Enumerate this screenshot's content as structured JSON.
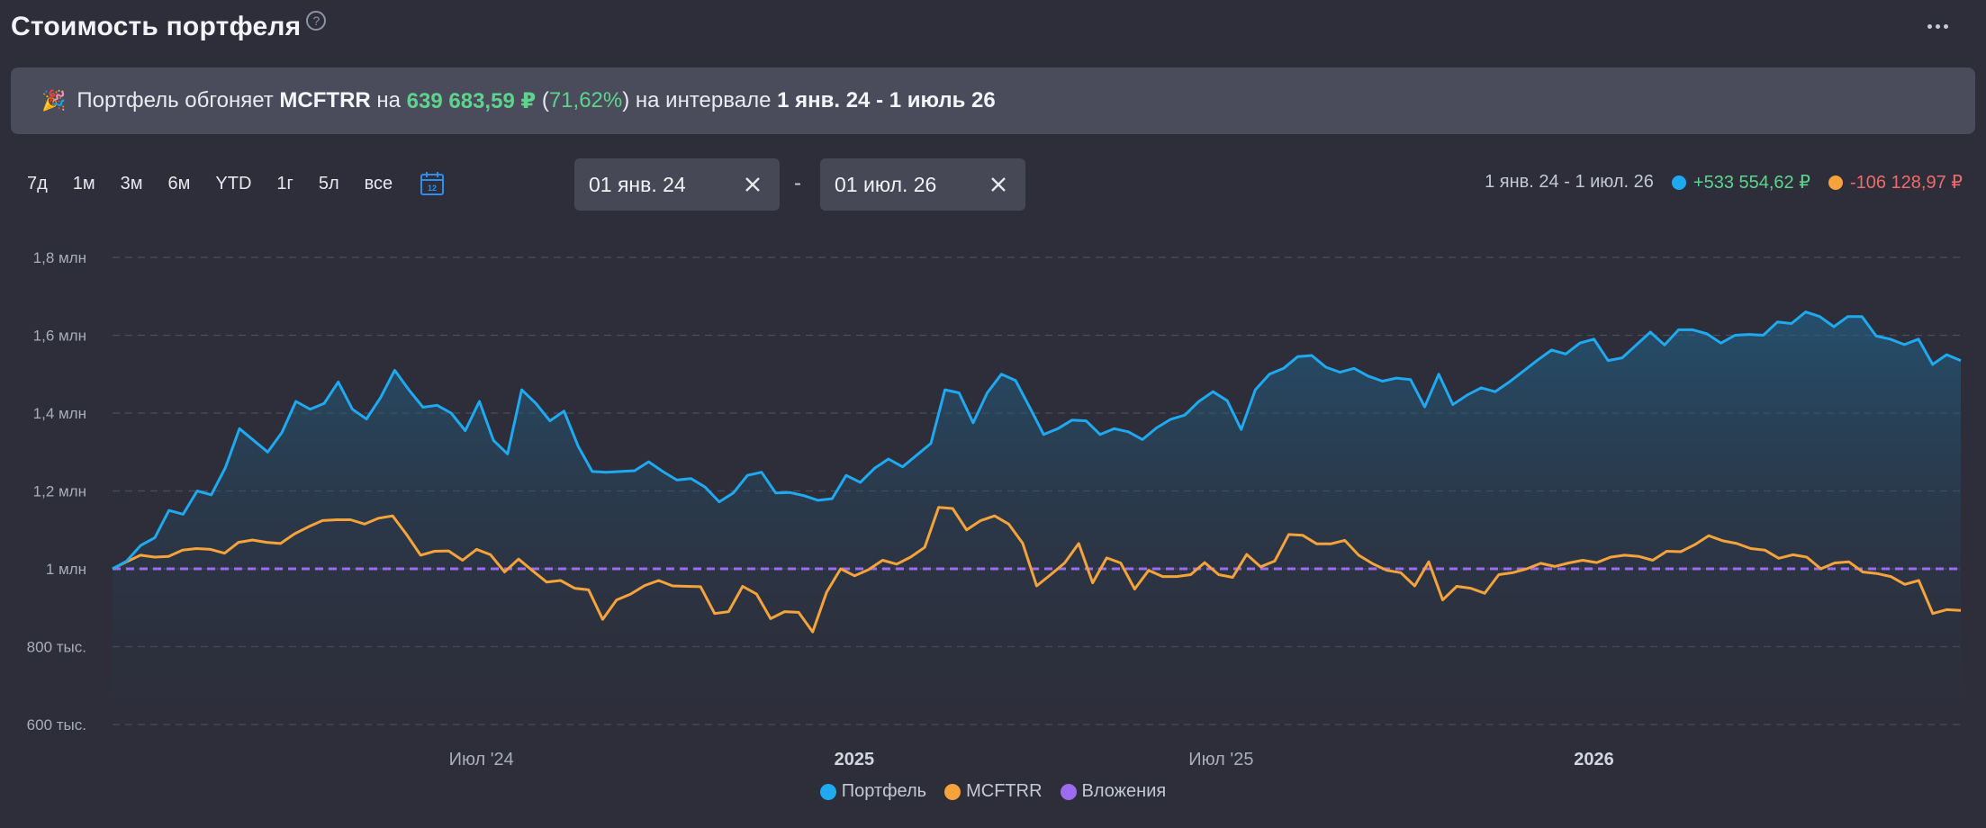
{
  "header": {
    "title": "Стоимость портфеля",
    "help": "?"
  },
  "banner": {
    "icon": "party-popper-icon",
    "text1": "Портфель обгоняет ",
    "benchmark": "MCFTRR",
    "text2": " на ",
    "amount": "639 683,59 ₽",
    "text3": " (",
    "percent": "71,62%",
    "text4": ") на интервале ",
    "interval": "1 янв. 24 - 1 июль 26"
  },
  "ranges": [
    "7д",
    "1м",
    "3м",
    "6м",
    "YTD",
    "1г",
    "5л",
    "все"
  ],
  "date_from": "01 янв. 24",
  "date_to": "01 июл. 26",
  "date_sep": "-",
  "summary": {
    "interval": "1 янв. 24 - 1 июл. 26",
    "portfolio_change": "+533 554,62 ₽",
    "benchmark_change": "-106 128,97 ₽"
  },
  "colors": {
    "portfolio": "#1ea9f0",
    "benchmark": "#f5a33a",
    "investments": "#9b6cf0",
    "positive": "#5fd38d",
    "negative": "#ef6b6b"
  },
  "chart_data": {
    "type": "line",
    "ylim": [
      600000,
      1800000
    ],
    "yticks": [
      {
        "v": 1800000,
        "label": "1,8 млн"
      },
      {
        "v": 1600000,
        "label": "1,6 млн"
      },
      {
        "v": 1400000,
        "label": "1,4 млн"
      },
      {
        "v": 1200000,
        "label": "1,2 млн"
      },
      {
        "v": 1000000,
        "label": "1 млн"
      },
      {
        "v": 800000,
        "label": "800 тыс."
      },
      {
        "v": 600000,
        "label": "600 тыс."
      }
    ],
    "xrange": [
      "2024-01-01",
      "2026-07-01"
    ],
    "xticks": [
      {
        "date": "2024-07-01",
        "label": "Июл '24",
        "bold": false
      },
      {
        "date": "2025-01-01",
        "label": "2025",
        "bold": true
      },
      {
        "date": "2025-07-01",
        "label": "Июл '25",
        "bold": false
      },
      {
        "date": "2026-01-01",
        "label": "2026",
        "bold": true
      }
    ],
    "series": [
      {
        "name": "Портфель",
        "key": "portfolio",
        "values": [
          1000000,
          1020000,
          1060000,
          1080000,
          1150000,
          1140000,
          1200000,
          1190000,
          1260000,
          1360000,
          1330000,
          1300000,
          1350000,
          1430000,
          1410000,
          1425000,
          1480000,
          1410000,
          1385000,
          1440000,
          1510000,
          1460000,
          1415000,
          1420000,
          1400000,
          1355000,
          1430000,
          1330000,
          1295000,
          1460000,
          1425000,
          1380000,
          1405000,
          1315000,
          1250000,
          1248000,
          1250000,
          1252000,
          1275000,
          1250000,
          1228000,
          1232000,
          1210000,
          1172000,
          1195000,
          1240000,
          1248000,
          1195000,
          1196000,
          1188000,
          1176000,
          1180000,
          1240000,
          1222000,
          1258000,
          1282000,
          1262000,
          1292000,
          1322000,
          1460000,
          1452000,
          1375000,
          1452000,
          1500000,
          1484000,
          1415000,
          1345000,
          1360000,
          1382000,
          1380000,
          1345000,
          1360000,
          1352000,
          1332000,
          1362000,
          1384000,
          1395000,
          1430000,
          1455000,
          1432000,
          1358000,
          1460000,
          1500000,
          1515000,
          1545000,
          1548000,
          1518000,
          1505000,
          1515000,
          1495000,
          1482000,
          1490000,
          1486000,
          1416000,
          1500000,
          1422000,
          1446000,
          1465000,
          1455000,
          1480000,
          1508000,
          1536000,
          1562000,
          1552000,
          1580000,
          1590000,
          1535000,
          1542000,
          1575000,
          1608000,
          1575000,
          1614000,
          1614000,
          1604000,
          1580000,
          1600000,
          1602000,
          1600000,
          1634000,
          1630000,
          1660000,
          1648000,
          1622000,
          1648000,
          1648000,
          1598000,
          1590000,
          1576000,
          1590000,
          1525000,
          1550000,
          1535000
        ]
      },
      {
        "name": "MCFTRR",
        "key": "benchmark",
        "values": [
          1000000,
          1018000,
          1035000,
          1030000,
          1032000,
          1048000,
          1052000,
          1050000,
          1040000,
          1068000,
          1074000,
          1068000,
          1065000,
          1090000,
          1108000,
          1124000,
          1126000,
          1126000,
          1115000,
          1130000,
          1136000,
          1088000,
          1035000,
          1045000,
          1046000,
          1022000,
          1050000,
          1036000,
          992000,
          1025000,
          995000,
          966000,
          970000,
          950000,
          946000,
          870000,
          920000,
          935000,
          957000,
          970000,
          956000,
          955000,
          954000,
          885000,
          890000,
          955000,
          935000,
          872000,
          890000,
          888000,
          838000,
          940000,
          1000000,
          982000,
          998000,
          1022000,
          1012000,
          1030000,
          1055000,
          1158000,
          1155000,
          1100000,
          1124000,
          1136000,
          1115000,
          1066000,
          956000,
          985000,
          1015000,
          1065000,
          964000,
          1028000,
          1015000,
          948000,
          996000,
          980000,
          980000,
          985000,
          1016000,
          985000,
          978000,
          1037000,
          1005000,
          1020000,
          1088000,
          1086000,
          1064000,
          1064000,
          1073000,
          1035000,
          1013000,
          996000,
          990000,
          956000,
          1018000,
          920000,
          955000,
          950000,
          937000,
          985000,
          990000,
          1000000,
          1014000,
          1006000,
          1015000,
          1022000,
          1016000,
          1030000,
          1035000,
          1032000,
          1022000,
          1045000,
          1044000,
          1062000,
          1085000,
          1072000,
          1065000,
          1052000,
          1048000,
          1027000,
          1036000,
          1030000,
          1000000,
          1015000,
          1018000,
          992000,
          988000,
          980000,
          960000,
          970000,
          885000,
          895000,
          893000
        ]
      },
      {
        "name": "Вложения",
        "key": "investments",
        "values": [
          1000000,
          1000000
        ]
      }
    ]
  }
}
